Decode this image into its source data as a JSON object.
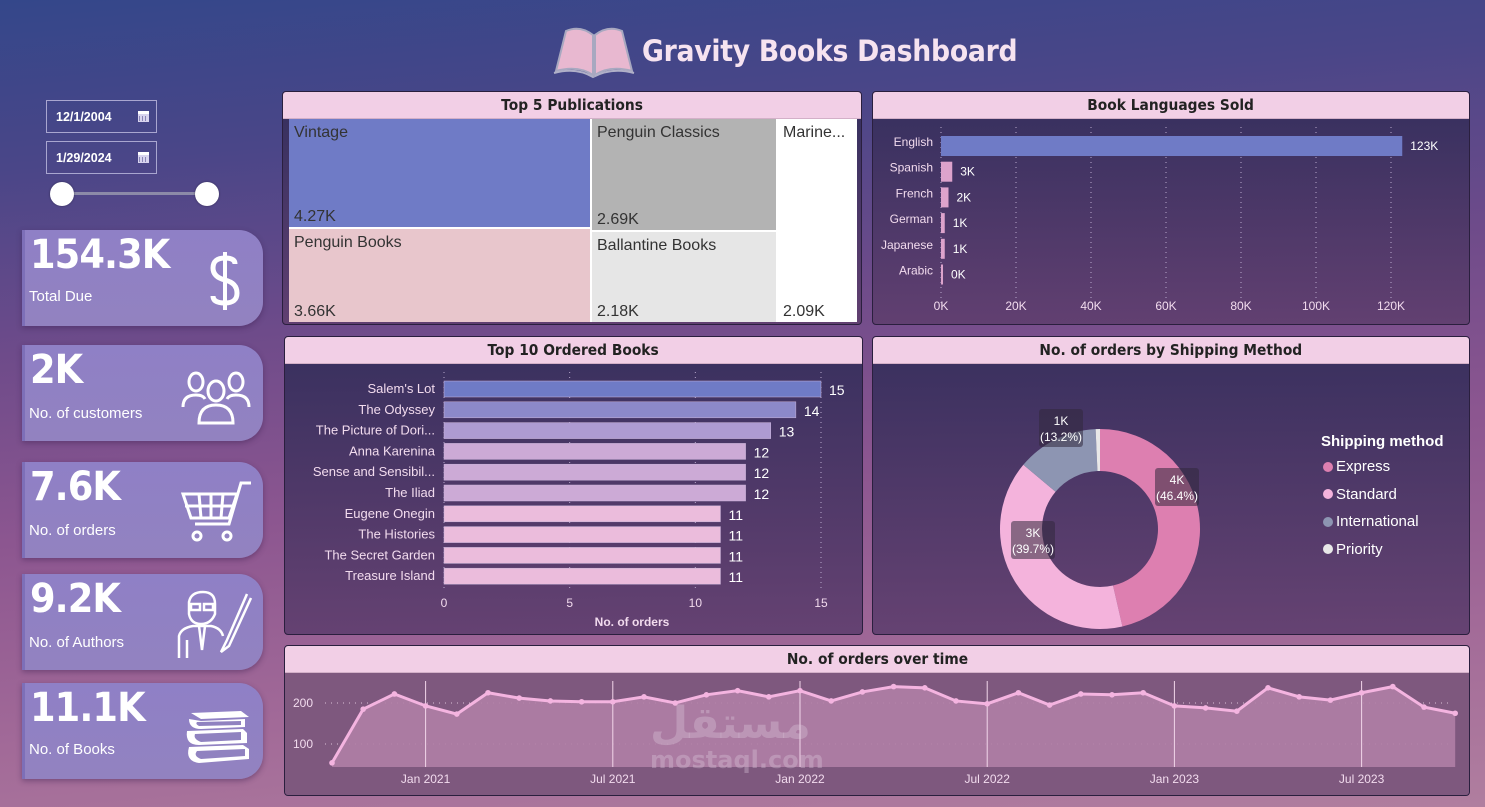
{
  "header": {
    "title": "Gravity Books Dashboard",
    "logo_icon": "open-book-icon"
  },
  "date_slicer": {
    "start_date": "12/1/2004",
    "end_date": "1/29/2024",
    "calendar_icon": "calendar-icon"
  },
  "kpis": [
    {
      "value": "154.3K",
      "label": "Total Due",
      "icon": "dollar-icon"
    },
    {
      "value": "2K",
      "label": "No. of customers",
      "icon": "users-group-icon"
    },
    {
      "value": "7.6K",
      "label": "No. of orders",
      "icon": "shopping-cart-icon"
    },
    {
      "value": "9.2K",
      "label": "No. of Authors",
      "icon": "author-pen-icon"
    },
    {
      "value": "11.1K",
      "label": "No. of Books",
      "icon": "books-stack-icon"
    }
  ],
  "colors": {
    "header_bg": "#f2cfe6",
    "accent_blue": "#6f7bc6",
    "express": "#dd7fb0",
    "standard": "#f4b3dc",
    "international": "#8d95b2",
    "priority": "#e8e8e8",
    "line": "#f4b4e0"
  },
  "panels": {
    "publications": {
      "title": "Top 5 Publications"
    },
    "languages": {
      "title": "Book Languages Sold"
    },
    "top_books": {
      "title": "Top 10 Ordered Books",
      "xlabel": "No. of orders"
    },
    "shipping": {
      "title": "No. of orders by Shipping Method",
      "legend_title": "Shipping method"
    },
    "orders_time": {
      "title": "No. of orders over time"
    }
  },
  "chart_data": [
    {
      "type": "treemap",
      "title": "Top 5 Publications",
      "categories": [
        "Vintage",
        "Penguin Books",
        "Penguin Classics",
        "Ballantine Books",
        "Marine..."
      ],
      "labels": [
        "4.27K",
        "3.66K",
        "2.69K",
        "2.18K",
        "2.09K"
      ],
      "values": [
        4270,
        3660,
        2690,
        2180,
        2090
      ]
    },
    {
      "type": "bar",
      "orientation": "horizontal",
      "title": "Book Languages Sold",
      "categories": [
        "English",
        "Spanish",
        "French",
        "German",
        "Japanese",
        "Arabic"
      ],
      "values": [
        123000,
        3000,
        2000,
        1000,
        1000,
        0
      ],
      "labels": [
        "123K",
        "3K",
        "2K",
        "1K",
        "1K",
        "0K"
      ],
      "xticks": [
        "0K",
        "20K",
        "40K",
        "60K",
        "80K",
        "100K",
        "120K"
      ],
      "xlim": [
        0,
        130000
      ]
    },
    {
      "type": "bar",
      "orientation": "horizontal",
      "title": "Top 10 Ordered Books",
      "categories": [
        "Salem's Lot",
        "The Odyssey",
        "The Picture of Dori...",
        "Anna Karenina",
        "Sense and Sensibil...",
        "The Iliad",
        "Eugene Onegin",
        "The Histories",
        "The Secret Garden",
        "Treasure Island"
      ],
      "values": [
        15,
        14,
        13,
        12,
        12,
        12,
        11,
        11,
        11,
        11
      ],
      "xticks": [
        "0",
        "5",
        "10",
        "15"
      ],
      "xlabel": "No. of orders",
      "xlim": [
        0,
        15
      ]
    },
    {
      "type": "pie",
      "subtype": "donut",
      "title": "No. of orders by Shipping Method",
      "legend_title": "Shipping method",
      "categories": [
        "Express",
        "Standard",
        "International",
        "Priority"
      ],
      "values": [
        46.4,
        39.7,
        13.2,
        0.7
      ],
      "labels": [
        "4K\n(46.4%)",
        "3K\n(39.7%)",
        "1K\n(13.2%)",
        ""
      ],
      "label_lines": [
        [
          "4K",
          "(46.4%)"
        ],
        [
          "3K",
          "(39.7%)"
        ],
        [
          "1K",
          "(13.2%)"
        ]
      ],
      "legend_position": "right"
    },
    {
      "type": "area",
      "title": "No. of orders over time",
      "x": [
        "Oct 2020",
        "Nov 2020",
        "Dec 2020",
        "Jan 2021",
        "Feb 2021",
        "Mar 2021",
        "Apr 2021",
        "May 2021",
        "Jun 2021",
        "Jul 2021",
        "Aug 2021",
        "Sep 2021",
        "Oct 2021",
        "Nov 2021",
        "Dec 2021",
        "Jan 2022",
        "Feb 2022",
        "Mar 2022",
        "Apr 2022",
        "May 2022",
        "Jun 2022",
        "Jul 2022",
        "Aug 2022",
        "Sep 2022",
        "Oct 2022",
        "Nov 2022",
        "Dec 2022",
        "Jan 2023",
        "Feb 2023",
        "Mar 2023",
        "Apr 2023",
        "May 2023",
        "Jun 2023",
        "Jul 2023",
        "Aug 2023",
        "Sep 2023",
        "Oct 2023"
      ],
      "values": [
        54,
        185,
        222,
        193,
        173,
        225,
        212,
        205,
        203,
        203,
        215,
        200,
        220,
        230,
        215,
        230,
        205,
        227,
        240,
        237,
        205,
        198,
        225,
        195,
        222,
        220,
        225,
        193,
        188,
        180,
        237,
        215,
        207,
        225,
        240,
        190,
        175
      ],
      "xticks": [
        "Jan 2021",
        "Jul 2021",
        "Jan 2022",
        "Jul 2022",
        "Jan 2023",
        "Jul 2023"
      ],
      "yticks": [
        "100",
        "200"
      ],
      "grid": true
    }
  ],
  "watermark": {
    "arabic": "مستقل",
    "latin": "mostaql.com"
  }
}
